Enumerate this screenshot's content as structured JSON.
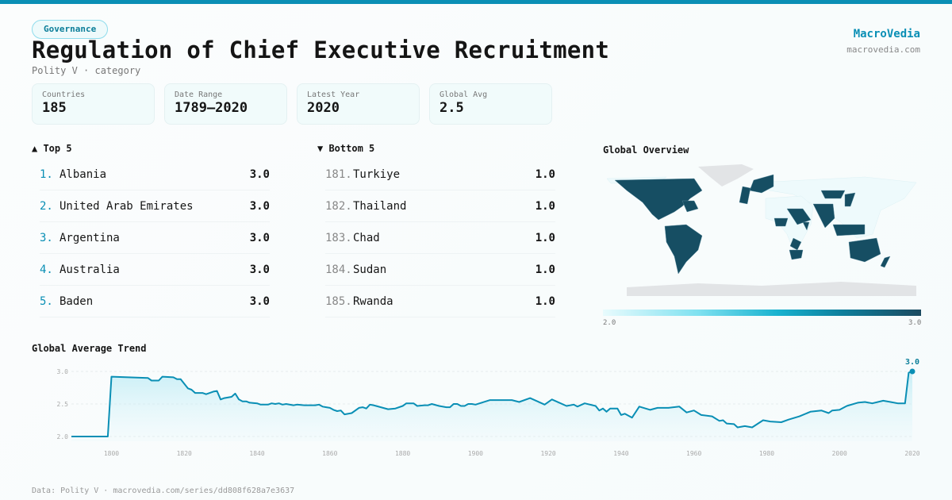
{
  "header": {
    "category_badge": "Governance",
    "title": "Regulation of Chief Executive Recruitment",
    "subtitle": "Polity V · category",
    "brand_name": "MacroVedia",
    "brand_url": "macrovedia.com"
  },
  "stats": [
    {
      "label": "Countries",
      "value": "185"
    },
    {
      "label": "Date Range",
      "value": "1789–2020"
    },
    {
      "label": "Latest Year",
      "value": "2020"
    },
    {
      "label": "Global Avg",
      "value": "2.5"
    }
  ],
  "top5": {
    "title": "▲ Top 5",
    "items": [
      {
        "rank": "1.",
        "name": "Albania",
        "value": "3.0"
      },
      {
        "rank": "2.",
        "name": "United Arab Emirates",
        "value": "3.0"
      },
      {
        "rank": "3.",
        "name": "Argentina",
        "value": "3.0"
      },
      {
        "rank": "4.",
        "name": "Australia",
        "value": "3.0"
      },
      {
        "rank": "5.",
        "name": "Baden",
        "value": "3.0"
      }
    ]
  },
  "bottom5": {
    "title": "▼ Bottom 5",
    "items": [
      {
        "rank": "181.",
        "name": "Turkiye",
        "value": "1.0"
      },
      {
        "rank": "182.",
        "name": "Thailand",
        "value": "1.0"
      },
      {
        "rank": "183.",
        "name": "Chad",
        "value": "1.0"
      },
      {
        "rank": "184.",
        "name": "Sudan",
        "value": "1.0"
      },
      {
        "rank": "185.",
        "name": "Rwanda",
        "value": "1.0"
      }
    ]
  },
  "map": {
    "title": "Global Overview",
    "legend_min": "2.0",
    "legend_max": "3.0",
    "colors": {
      "high": "#164e63",
      "low": "#eefafc",
      "nodata": "#e2e4e6"
    }
  },
  "chart_data": {
    "type": "line",
    "title": "Global Average Trend",
    "xlabel": "",
    "ylabel": "",
    "xlim": [
      1789,
      2020
    ],
    "ylim": [
      2.0,
      3.0
    ],
    "yticks": [
      "2.0",
      "2.5",
      "3.0"
    ],
    "xticks": [
      "1800",
      "1820",
      "1840",
      "1860",
      "1880",
      "1900",
      "1920",
      "1940",
      "1960",
      "1980",
      "2000",
      "2020"
    ],
    "end_label": "3.0",
    "color": "#0a8fb5",
    "x": [
      1789,
      1799,
      1800,
      1810,
      1811,
      1813,
      1814,
      1817,
      1818,
      1819,
      1821,
      1822,
      1823,
      1825,
      1826,
      1828,
      1829,
      1830,
      1831,
      1833,
      1834,
      1835,
      1836,
      1837,
      1838,
      1840,
      1841,
      1843,
      1844,
      1845,
      1846,
      1847,
      1848,
      1850,
      1851,
      1853,
      1856,
      1857,
      1858,
      1859,
      1860,
      1861,
      1862,
      1863,
      1864,
      1866,
      1868,
      1869,
      1870,
      1871,
      1872,
      1876,
      1878,
      1880,
      1881,
      1883,
      1884,
      1886,
      1887,
      1888,
      1890,
      1892,
      1893,
      1894,
      1895,
      1896,
      1897,
      1898,
      1899,
      1900,
      1904,
      1910,
      1912,
      1915,
      1917,
      1919,
      1921,
      1925,
      1927,
      1928,
      1930,
      1933,
      1934,
      1935,
      1936,
      1937,
      1939,
      1940,
      1941,
      1943,
      1945,
      1948,
      1950,
      1953,
      1956,
      1958,
      1960,
      1962,
      1965,
      1967,
      1968,
      1969,
      1971,
      1972,
      1974,
      1976,
      1979,
      1981,
      1984,
      1986,
      1989,
      1992,
      1995,
      1997,
      1998,
      2000,
      2002,
      2005,
      2007,
      2009,
      2012,
      2014,
      2016,
      2018,
      2019,
      2020
    ],
    "y": [
      2.0,
      2.0,
      2.92,
      2.9,
      2.86,
      2.86,
      2.92,
      2.91,
      2.88,
      2.88,
      2.74,
      2.72,
      2.67,
      2.67,
      2.65,
      2.69,
      2.7,
      2.57,
      2.59,
      2.61,
      2.66,
      2.57,
      2.54,
      2.54,
      2.52,
      2.51,
      2.49,
      2.49,
      2.51,
      2.5,
      2.51,
      2.49,
      2.5,
      2.48,
      2.49,
      2.48,
      2.48,
      2.49,
      2.46,
      2.45,
      2.44,
      2.41,
      2.39,
      2.4,
      2.34,
      2.36,
      2.44,
      2.45,
      2.43,
      2.49,
      2.48,
      2.42,
      2.43,
      2.47,
      2.51,
      2.51,
      2.47,
      2.48,
      2.48,
      2.5,
      2.47,
      2.45,
      2.45,
      2.5,
      2.5,
      2.47,
      2.47,
      2.5,
      2.5,
      2.49,
      2.56,
      2.56,
      2.53,
      2.59,
      2.54,
      2.49,
      2.57,
      2.47,
      2.49,
      2.46,
      2.51,
      2.47,
      2.4,
      2.43,
      2.38,
      2.43,
      2.43,
      2.33,
      2.35,
      2.29,
      2.46,
      2.41,
      2.44,
      2.44,
      2.46,
      2.37,
      2.4,
      2.33,
      2.31,
      2.24,
      2.25,
      2.2,
      2.19,
      2.14,
      2.16,
      2.14,
      2.25,
      2.23,
      2.22,
      2.26,
      2.31,
      2.38,
      2.4,
      2.36,
      2.4,
      2.41,
      2.47,
      2.52,
      2.53,
      2.51,
      2.55,
      2.53,
      2.51,
      2.51,
      2.98,
      3.0
    ]
  },
  "footer": {
    "source": "Data: Polity V · macrovedia.com/series/dd808f628a7e3637"
  }
}
